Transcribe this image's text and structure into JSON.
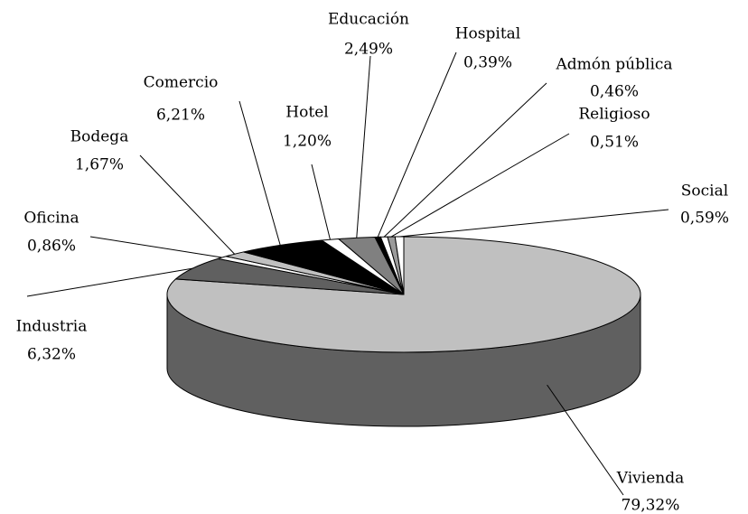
{
  "chart_data": {
    "type": "pie",
    "three_d": true,
    "categories": [
      "Vivienda",
      "Industria",
      "Oficina",
      "Bodega",
      "Comercio",
      "Hotel",
      "Educación",
      "Hospital",
      "Admón pública",
      "Religioso",
      "Social"
    ],
    "values": [
      79.32,
      6.32,
      0.86,
      1.67,
      6.21,
      1.2,
      2.49,
      0.39,
      0.46,
      0.51,
      0.59
    ],
    "value_labels": [
      "79,32%",
      "6,32%",
      "0,86%",
      "1,67%",
      "6,21%",
      "1,20%",
      "2,49%",
      "0,39%",
      "0,46%",
      "0,51%",
      "0,59%"
    ],
    "colors": [
      "#c0c0c0",
      "#606060",
      "#ffffff",
      "#c0c0c0",
      "#000000",
      "#ffffff",
      "#808080",
      "#000000",
      "#ffffff",
      "#9a9a9a",
      "#ffffff"
    ]
  }
}
